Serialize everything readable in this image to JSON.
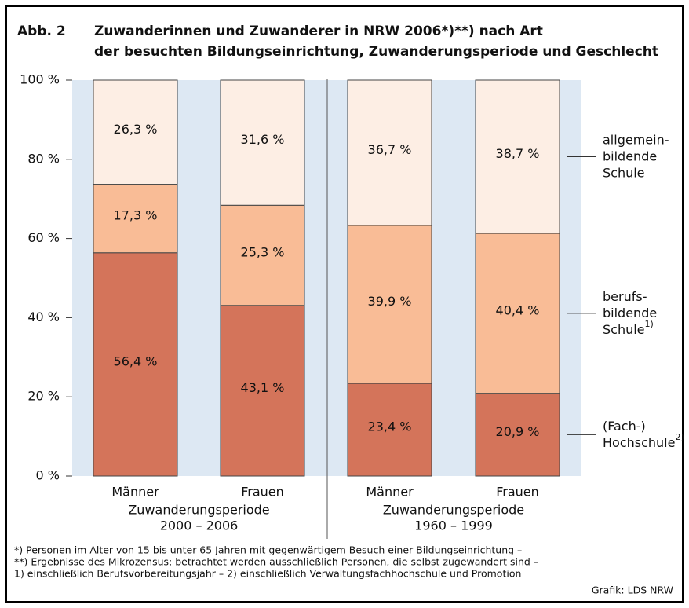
{
  "chart_data": {
    "type": "stacked_bar",
    "figure_label": "Abb. 2",
    "title": [
      "Zuwanderinnen und Zuwanderer in NRW 2006*)**) nach Art",
      "der besuchten Bildungseinrichtung, Zuwanderungsperiode und Geschlecht"
    ],
    "categories": [
      "Männer",
      "Frauen",
      "Männer",
      "Frauen"
    ],
    "groups": [
      {
        "name": "Zuwanderungsperiode",
        "period": "2000 – 2006"
      },
      {
        "name": "Zuwanderungsperiode",
        "period": "1960 – 1999"
      }
    ],
    "series": [
      {
        "name": [
          "(Fach-)",
          "Hochschule"
        ],
        "note": "2)",
        "color": "#d4745a",
        "values": [
          56.4,
          43.1,
          23.4,
          20.9
        ],
        "value_labels": [
          "56,4 %",
          "43,1 %",
          "23,4 %",
          "20,9 %"
        ]
      },
      {
        "name": [
          "berufs-",
          "bildende",
          "Schule"
        ],
        "note": "1)",
        "color": "#f9bc96",
        "values": [
          17.3,
          25.3,
          39.9,
          40.4
        ],
        "value_labels": [
          "17,3 %",
          "25,3 %",
          "39,9 %",
          "40,4 %"
        ]
      },
      {
        "name": [
          "allgemein-",
          "bildende",
          "Schule"
        ],
        "color": "#fdeee4",
        "values": [
          26.3,
          31.6,
          36.7,
          38.7
        ],
        "value_labels": [
          "26,3 %",
          "31,6 %",
          "36,7 %",
          "38,7 %"
        ]
      }
    ],
    "ylim": [
      0,
      100
    ],
    "yticks": [
      {
        "value": 0,
        "label": "0 %"
      },
      {
        "value": 20,
        "label": "20 %"
      },
      {
        "value": 40,
        "label": "40 %"
      },
      {
        "value": 60,
        "label": "60 %"
      },
      {
        "value": 80,
        "label": "80 %"
      },
      {
        "value": 100,
        "label": "100 %"
      }
    ],
    "footnotes": [
      "*) Personen im Alter von 15 bis unter 65 Jahren mit gegenwärtigem Besuch einer Bildungseinrichtung –",
      "**) Ergebnisse des Mikrozensus; betrachtet werden ausschließlich Personen, die selbst zugewandert sind –",
      "1) einschließlich Berufsvorbereitungsjahr – 2) einschließlich Verwaltungsfachhochschule und Promotion"
    ],
    "source": "Grafik: LDS NRW"
  }
}
